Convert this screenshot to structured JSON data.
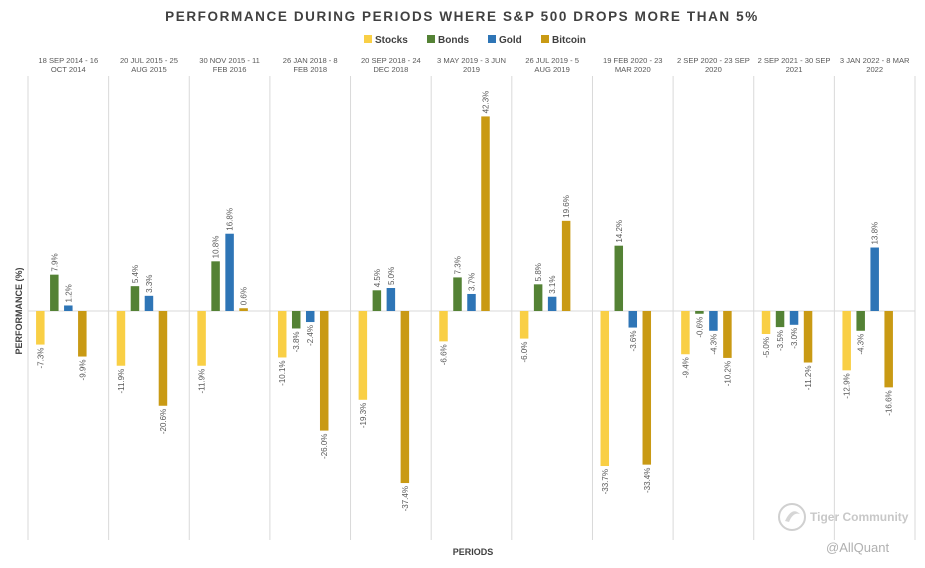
{
  "chart_data": {
    "type": "bar",
    "title": "PERFORMANCE DURING PERIODS WHERE S&P 500 DROPS MORE THAN 5%",
    "xlabel": "PERIODS",
    "ylabel": "PERFORMANCE (%)",
    "ylim": [
      -40,
      45
    ],
    "categories": [
      [
        "18 SEP 2014 - 16",
        "OCT 2014"
      ],
      [
        "20 JUL 2015 - 25",
        "AUG 2015"
      ],
      [
        "30 NOV 2015 - 11",
        "FEB 2016"
      ],
      [
        "26 JAN 2018 - 8",
        "FEB 2018"
      ],
      [
        "20 SEP 2018 - 24",
        "DEC 2018"
      ],
      [
        "3 MAY 2019 - 3 JUN",
        "2019"
      ],
      [
        "26 JUL 2019 - 5",
        "AUG 2019"
      ],
      [
        "19 FEB 2020 - 23",
        "MAR 2020"
      ],
      [
        "2 SEP 2020 - 23 SEP",
        "2020"
      ],
      [
        "2 SEP 2021 - 30 SEP",
        "2021"
      ],
      [
        "3 JAN 2022 - 8 MAR",
        "2022"
      ]
    ],
    "series": [
      {
        "name": "Stocks",
        "color": "#F9CF45",
        "values": [
          -7.3,
          -11.9,
          -11.9,
          -10.1,
          -19.3,
          -6.6,
          -6.0,
          -33.7,
          -9.4,
          -5.0,
          -12.9
        ],
        "labels": [
          "-7.3%",
          "-11.9%",
          "-11.9%",
          "-10.1%",
          "-19.3%",
          "-6.6%",
          "-6.0%",
          "-33.7%",
          "-9.4%",
          "-5.0%",
          "-12.9%"
        ]
      },
      {
        "name": "Bonds",
        "color": "#548235",
        "values": [
          7.9,
          5.4,
          10.8,
          -3.8,
          4.5,
          7.3,
          5.8,
          14.2,
          -0.6,
          -3.5,
          -4.3
        ],
        "labels": [
          "7.9%",
          "5.4%",
          "10.8%",
          "-3.8%",
          "4.5%",
          "7.3%",
          "5.8%",
          "14.2%",
          "-0.6%",
          "-3.5%",
          "-4.3%"
        ]
      },
      {
        "name": "Gold",
        "color": "#2E75B6",
        "values": [
          1.2,
          3.3,
          16.8,
          -2.4,
          5.0,
          3.7,
          3.1,
          -3.6,
          -4.3,
          -3.0,
          13.8
        ],
        "labels": [
          "1.2%",
          "3.3%",
          "16.8%",
          "-2.4%",
          "5.0%",
          "3.7%",
          "3.1%",
          "-3.6%",
          "-4.3%",
          "-3.0%",
          "13.8%"
        ]
      },
      {
        "name": "Bitcoin",
        "color": "#C99A14",
        "values": [
          -9.9,
          -20.6,
          0.6,
          -26.0,
          -37.4,
          42.3,
          19.6,
          -33.4,
          -10.2,
          -11.2,
          -16.6
        ],
        "labels": [
          "-9.9%",
          "-20.6%",
          "0.6%",
          "-26.0%",
          "-37.4%",
          "42.3%",
          "19.6%",
          "-33.4%",
          "-10.2%",
          "-11.2%",
          "-16.6%"
        ]
      }
    ],
    "legend_position": "top-center",
    "gridlines": "vertical separators"
  },
  "watermark": {
    "name": "Tiger Community",
    "handle": "@AllQuant"
  }
}
